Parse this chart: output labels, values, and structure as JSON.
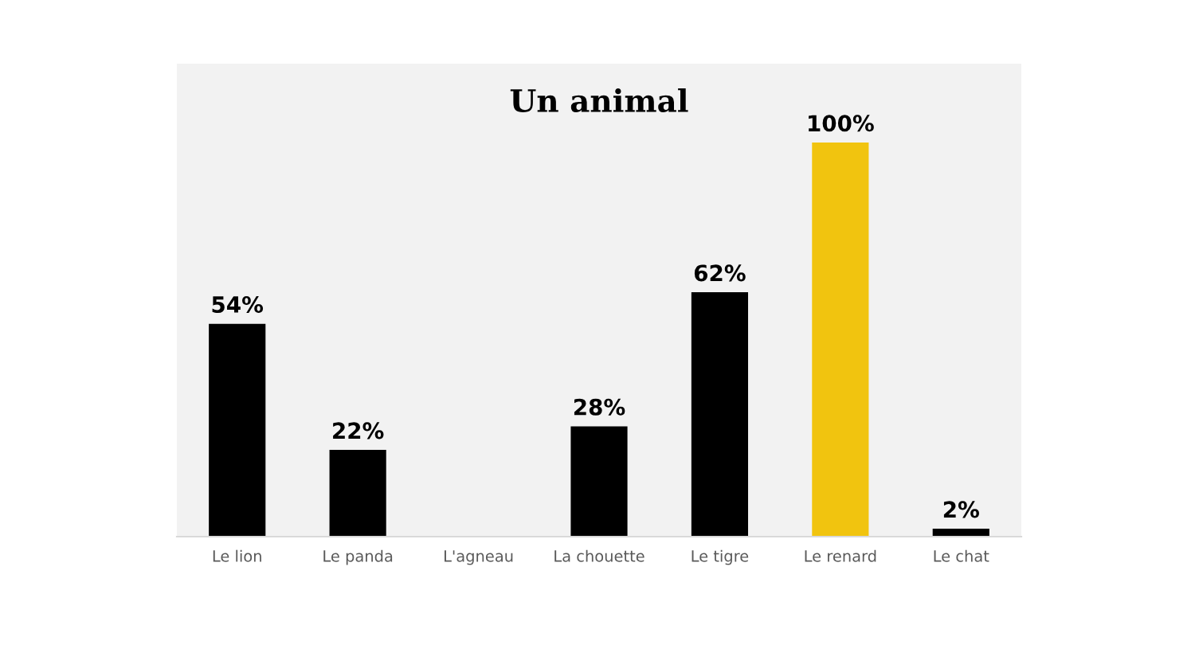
{
  "chart_data": {
    "type": "bar",
    "title": "Un animal",
    "categories": [
      "Le lion",
      "Le panda",
      "L'agneau",
      "La chouette",
      "Le tigre",
      "Le renard",
      "Le chat"
    ],
    "values": [
      54,
      22,
      0,
      28,
      62,
      100,
      2
    ],
    "colors": [
      "#000000",
      "#000000",
      "#000000",
      "#000000",
      "#000000",
      "#f1c40f",
      "#000000"
    ],
    "value_labels": [
      "54%",
      "22%",
      null,
      "28%",
      "62%",
      "100%",
      "2%"
    ],
    "ylim": [
      0,
      120
    ],
    "tick_labels": "x",
    "grid": false,
    "legend": false
  }
}
